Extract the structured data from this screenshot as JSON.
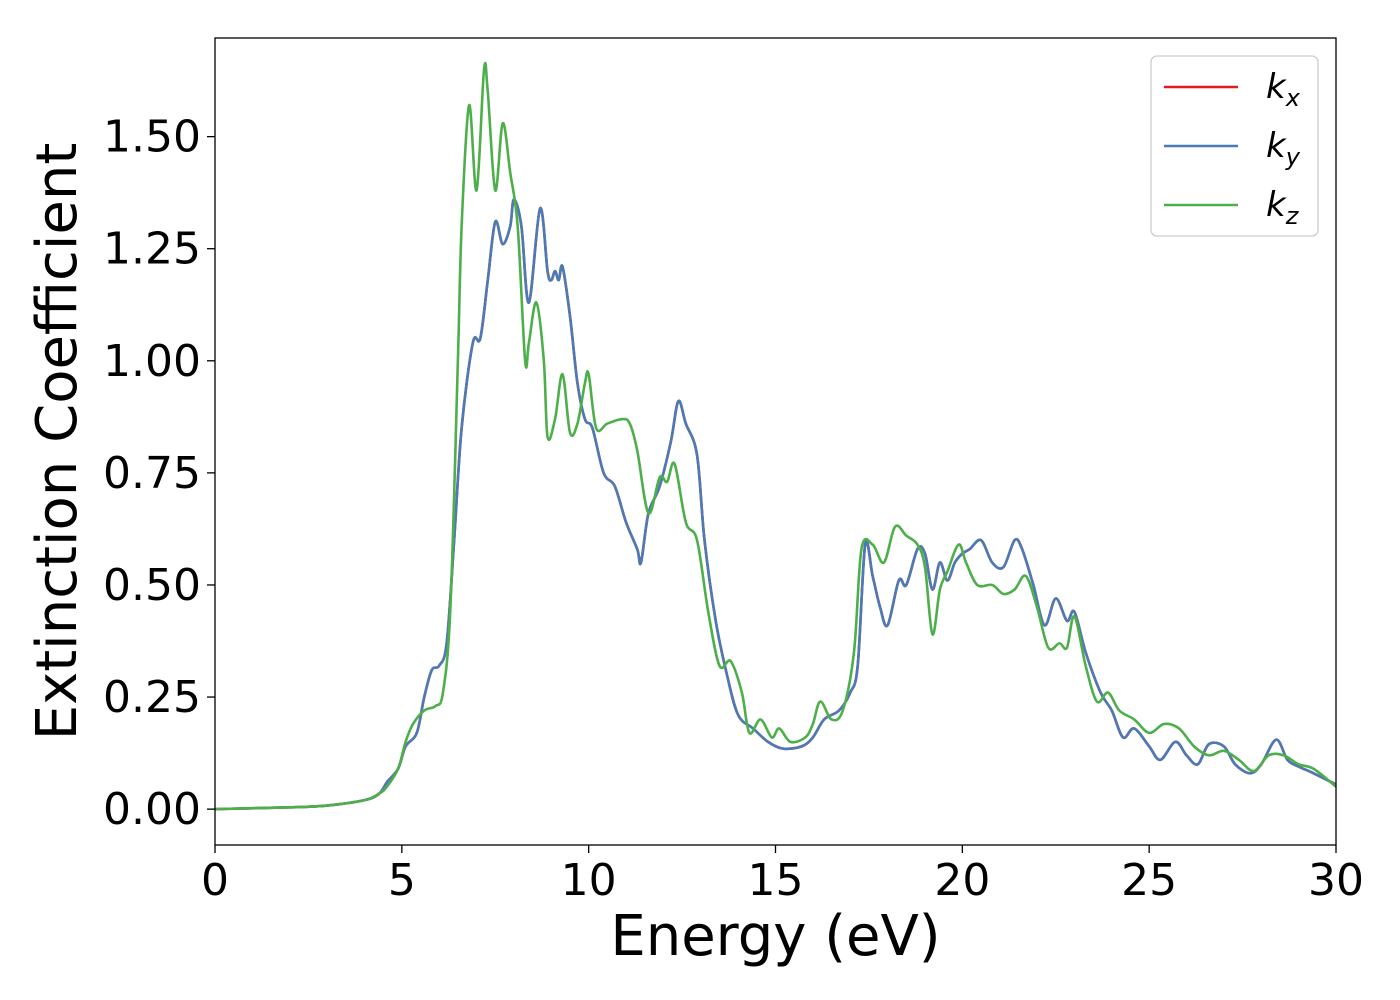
{
  "chart_data": {
    "type": "line",
    "xlabel": "Energy (eV)",
    "ylabel": "Extinction Coefficient",
    "xlim": [
      0,
      30
    ],
    "ylim": [
      -0.08,
      1.72
    ],
    "x_ticks": [
      0,
      5,
      10,
      15,
      20,
      25,
      30
    ],
    "x_tick_labels": [
      "0",
      "5",
      "10",
      "15",
      "20",
      "25",
      "30"
    ],
    "y_ticks": [
      0,
      0.25,
      0.5,
      0.75,
      1.0,
      1.25,
      1.5
    ],
    "y_tick_labels": [
      "0.00",
      "0.25",
      "0.50",
      "0.75",
      "1.00",
      "1.25",
      "1.50"
    ],
    "grid": false,
    "legend_position": "top-right",
    "series": [
      {
        "name": "k_x",
        "label_base": "k",
        "label_sub": "x",
        "color": "#e41a1c",
        "points": [
          [
            0,
            0
          ],
          [
            2,
            0.004
          ],
          [
            3,
            0.008
          ],
          [
            4,
            0.02
          ],
          [
            4.4,
            0.035
          ],
          [
            4.6,
            0.06
          ],
          [
            4.9,
            0.09
          ],
          [
            5.1,
            0.14
          ],
          [
            5.4,
            0.17
          ],
          [
            5.6,
            0.25
          ],
          [
            5.8,
            0.31
          ],
          [
            6.0,
            0.32
          ],
          [
            6.2,
            0.37
          ],
          [
            6.4,
            0.6
          ],
          [
            6.6,
            0.85
          ],
          [
            6.9,
            1.04
          ],
          [
            7.1,
            1.05
          ],
          [
            7.3,
            1.18
          ],
          [
            7.5,
            1.31
          ],
          [
            7.7,
            1.26
          ],
          [
            7.9,
            1.3
          ],
          [
            8.0,
            1.36
          ],
          [
            8.2,
            1.3
          ],
          [
            8.4,
            1.13
          ],
          [
            8.7,
            1.34
          ],
          [
            8.9,
            1.2
          ],
          [
            9.0,
            1.18
          ],
          [
            9.1,
            1.2
          ],
          [
            9.2,
            1.18
          ],
          [
            9.3,
            1.21
          ],
          [
            9.5,
            1.1
          ],
          [
            9.7,
            0.95
          ],
          [
            9.9,
            0.87
          ],
          [
            10.1,
            0.85
          ],
          [
            10.4,
            0.75
          ],
          [
            10.7,
            0.72
          ],
          [
            11.0,
            0.64
          ],
          [
            11.3,
            0.58
          ],
          [
            11.4,
            0.55
          ],
          [
            11.6,
            0.66
          ],
          [
            11.9,
            0.72
          ],
          [
            12.2,
            0.82
          ],
          [
            12.4,
            0.91
          ],
          [
            12.6,
            0.86
          ],
          [
            12.9,
            0.79
          ],
          [
            13.1,
            0.6
          ],
          [
            13.4,
            0.42
          ],
          [
            13.7,
            0.3
          ],
          [
            14.0,
            0.21
          ],
          [
            14.4,
            0.18
          ],
          [
            14.8,
            0.15
          ],
          [
            15.2,
            0.135
          ],
          [
            15.7,
            0.14
          ],
          [
            16.0,
            0.16
          ],
          [
            16.3,
            0.2
          ],
          [
            16.7,
            0.22
          ],
          [
            17.0,
            0.26
          ],
          [
            17.2,
            0.32
          ],
          [
            17.4,
            0.59
          ],
          [
            17.6,
            0.52
          ],
          [
            17.8,
            0.45
          ],
          [
            18.0,
            0.41
          ],
          [
            18.3,
            0.51
          ],
          [
            18.5,
            0.5
          ],
          [
            18.8,
            0.58
          ],
          [
            19.0,
            0.57
          ],
          [
            19.2,
            0.49
          ],
          [
            19.4,
            0.55
          ],
          [
            19.6,
            0.51
          ],
          [
            19.8,
            0.55
          ],
          [
            20.0,
            0.57
          ],
          [
            20.2,
            0.58
          ],
          [
            20.5,
            0.6
          ],
          [
            20.8,
            0.55
          ],
          [
            21.1,
            0.54
          ],
          [
            21.4,
            0.6
          ],
          [
            21.6,
            0.58
          ],
          [
            21.9,
            0.5
          ],
          [
            22.2,
            0.41
          ],
          [
            22.5,
            0.47
          ],
          [
            22.8,
            0.42
          ],
          [
            23.0,
            0.44
          ],
          [
            23.3,
            0.35
          ],
          [
            23.7,
            0.26
          ],
          [
            24.0,
            0.22
          ],
          [
            24.3,
            0.16
          ],
          [
            24.6,
            0.18
          ],
          [
            25.0,
            0.14
          ],
          [
            25.3,
            0.11
          ],
          [
            25.7,
            0.15
          ],
          [
            26.0,
            0.12
          ],
          [
            26.3,
            0.1
          ],
          [
            26.6,
            0.145
          ],
          [
            27.0,
            0.14
          ],
          [
            27.3,
            0.1
          ],
          [
            27.7,
            0.08
          ],
          [
            28.0,
            0.1
          ],
          [
            28.4,
            0.155
          ],
          [
            28.7,
            0.11
          ],
          [
            29.0,
            0.095
          ],
          [
            29.4,
            0.08
          ],
          [
            30,
            0.055
          ]
        ]
      },
      {
        "name": "k_y",
        "label_base": "k",
        "label_sub": "y",
        "color": "#4a7bb7",
        "points": [
          [
            0,
            0
          ],
          [
            2,
            0.004
          ],
          [
            3,
            0.008
          ],
          [
            4,
            0.02
          ],
          [
            4.4,
            0.035
          ],
          [
            4.6,
            0.06
          ],
          [
            4.9,
            0.09
          ],
          [
            5.1,
            0.14
          ],
          [
            5.4,
            0.17
          ],
          [
            5.6,
            0.25
          ],
          [
            5.8,
            0.31
          ],
          [
            6.0,
            0.32
          ],
          [
            6.2,
            0.37
          ],
          [
            6.4,
            0.6
          ],
          [
            6.6,
            0.85
          ],
          [
            6.9,
            1.04
          ],
          [
            7.1,
            1.05
          ],
          [
            7.3,
            1.18
          ],
          [
            7.5,
            1.31
          ],
          [
            7.7,
            1.26
          ],
          [
            7.9,
            1.3
          ],
          [
            8.0,
            1.36
          ],
          [
            8.2,
            1.3
          ],
          [
            8.4,
            1.13
          ],
          [
            8.7,
            1.34
          ],
          [
            8.9,
            1.2
          ],
          [
            9.0,
            1.18
          ],
          [
            9.1,
            1.2
          ],
          [
            9.2,
            1.18
          ],
          [
            9.3,
            1.21
          ],
          [
            9.5,
            1.1
          ],
          [
            9.7,
            0.95
          ],
          [
            9.9,
            0.87
          ],
          [
            10.1,
            0.85
          ],
          [
            10.4,
            0.75
          ],
          [
            10.7,
            0.72
          ],
          [
            11.0,
            0.64
          ],
          [
            11.3,
            0.58
          ],
          [
            11.4,
            0.55
          ],
          [
            11.6,
            0.66
          ],
          [
            11.9,
            0.72
          ],
          [
            12.2,
            0.82
          ],
          [
            12.4,
            0.91
          ],
          [
            12.6,
            0.86
          ],
          [
            12.9,
            0.79
          ],
          [
            13.1,
            0.6
          ],
          [
            13.4,
            0.42
          ],
          [
            13.7,
            0.3
          ],
          [
            14.0,
            0.21
          ],
          [
            14.4,
            0.18
          ],
          [
            14.8,
            0.15
          ],
          [
            15.2,
            0.135
          ],
          [
            15.7,
            0.14
          ],
          [
            16.0,
            0.16
          ],
          [
            16.3,
            0.2
          ],
          [
            16.7,
            0.22
          ],
          [
            17.0,
            0.26
          ],
          [
            17.2,
            0.32
          ],
          [
            17.4,
            0.59
          ],
          [
            17.6,
            0.52
          ],
          [
            17.8,
            0.45
          ],
          [
            18.0,
            0.41
          ],
          [
            18.3,
            0.51
          ],
          [
            18.5,
            0.5
          ],
          [
            18.8,
            0.58
          ],
          [
            19.0,
            0.57
          ],
          [
            19.2,
            0.49
          ],
          [
            19.4,
            0.55
          ],
          [
            19.6,
            0.51
          ],
          [
            19.8,
            0.55
          ],
          [
            20.0,
            0.57
          ],
          [
            20.2,
            0.58
          ],
          [
            20.5,
            0.6
          ],
          [
            20.8,
            0.55
          ],
          [
            21.1,
            0.54
          ],
          [
            21.4,
            0.6
          ],
          [
            21.6,
            0.58
          ],
          [
            21.9,
            0.5
          ],
          [
            22.2,
            0.41
          ],
          [
            22.5,
            0.47
          ],
          [
            22.8,
            0.42
          ],
          [
            23.0,
            0.44
          ],
          [
            23.3,
            0.35
          ],
          [
            23.7,
            0.26
          ],
          [
            24.0,
            0.22
          ],
          [
            24.3,
            0.16
          ],
          [
            24.6,
            0.18
          ],
          [
            25.0,
            0.14
          ],
          [
            25.3,
            0.11
          ],
          [
            25.7,
            0.15
          ],
          [
            26.0,
            0.12
          ],
          [
            26.3,
            0.1
          ],
          [
            26.6,
            0.145
          ],
          [
            27.0,
            0.14
          ],
          [
            27.3,
            0.1
          ],
          [
            27.7,
            0.08
          ],
          [
            28.0,
            0.1
          ],
          [
            28.4,
            0.155
          ],
          [
            28.7,
            0.11
          ],
          [
            29.0,
            0.095
          ],
          [
            29.4,
            0.08
          ],
          [
            30,
            0.055
          ]
        ]
      },
      {
        "name": "k_z",
        "label_base": "k",
        "label_sub": "z",
        "color": "#4daf4a",
        "points": [
          [
            0,
            0
          ],
          [
            2,
            0.004
          ],
          [
            3,
            0.008
          ],
          [
            4,
            0.02
          ],
          [
            4.4,
            0.035
          ],
          [
            4.6,
            0.05
          ],
          [
            4.9,
            0.09
          ],
          [
            5.1,
            0.15
          ],
          [
            5.3,
            0.19
          ],
          [
            5.6,
            0.22
          ],
          [
            5.9,
            0.23
          ],
          [
            6.1,
            0.26
          ],
          [
            6.3,
            0.45
          ],
          [
            6.5,
            1.0
          ],
          [
            6.6,
            1.3
          ],
          [
            6.8,
            1.57
          ],
          [
            7.0,
            1.38
          ],
          [
            7.2,
            1.65
          ],
          [
            7.3,
            1.6
          ],
          [
            7.5,
            1.38
          ],
          [
            7.7,
            1.53
          ],
          [
            7.9,
            1.42
          ],
          [
            8.1,
            1.3
          ],
          [
            8.3,
            1.0
          ],
          [
            8.4,
            1.04
          ],
          [
            8.6,
            1.13
          ],
          [
            8.8,
            1.0
          ],
          [
            8.9,
            0.83
          ],
          [
            9.1,
            0.87
          ],
          [
            9.3,
            0.97
          ],
          [
            9.5,
            0.84
          ],
          [
            9.7,
            0.86
          ],
          [
            9.9,
            0.95
          ],
          [
            10.0,
            0.97
          ],
          [
            10.2,
            0.85
          ],
          [
            10.5,
            0.86
          ],
          [
            10.9,
            0.87
          ],
          [
            11.1,
            0.86
          ],
          [
            11.3,
            0.8
          ],
          [
            11.6,
            0.66
          ],
          [
            11.9,
            0.74
          ],
          [
            12.1,
            0.73
          ],
          [
            12.3,
            0.77
          ],
          [
            12.6,
            0.64
          ],
          [
            12.9,
            0.6
          ],
          [
            13.2,
            0.44
          ],
          [
            13.5,
            0.32
          ],
          [
            13.8,
            0.33
          ],
          [
            14.1,
            0.26
          ],
          [
            14.3,
            0.17
          ],
          [
            14.6,
            0.2
          ],
          [
            14.9,
            0.16
          ],
          [
            15.1,
            0.18
          ],
          [
            15.4,
            0.15
          ],
          [
            15.8,
            0.16
          ],
          [
            16.0,
            0.19
          ],
          [
            16.2,
            0.24
          ],
          [
            16.5,
            0.2
          ],
          [
            16.8,
            0.22
          ],
          [
            17.1,
            0.35
          ],
          [
            17.3,
            0.58
          ],
          [
            17.6,
            0.59
          ],
          [
            17.9,
            0.55
          ],
          [
            18.2,
            0.63
          ],
          [
            18.5,
            0.61
          ],
          [
            18.8,
            0.59
          ],
          [
            19.0,
            0.54
          ],
          [
            19.2,
            0.39
          ],
          [
            19.4,
            0.49
          ],
          [
            19.6,
            0.53
          ],
          [
            19.9,
            0.59
          ],
          [
            20.1,
            0.55
          ],
          [
            20.4,
            0.5
          ],
          [
            20.8,
            0.5
          ],
          [
            21.1,
            0.48
          ],
          [
            21.4,
            0.49
          ],
          [
            21.7,
            0.52
          ],
          [
            22.0,
            0.45
          ],
          [
            22.3,
            0.36
          ],
          [
            22.6,
            0.37
          ],
          [
            22.8,
            0.36
          ],
          [
            23.0,
            0.43
          ],
          [
            23.3,
            0.32
          ],
          [
            23.6,
            0.24
          ],
          [
            23.9,
            0.26
          ],
          [
            24.2,
            0.22
          ],
          [
            24.6,
            0.2
          ],
          [
            25.0,
            0.17
          ],
          [
            25.4,
            0.19
          ],
          [
            25.8,
            0.18
          ],
          [
            26.2,
            0.14
          ],
          [
            26.6,
            0.12
          ],
          [
            27.0,
            0.13
          ],
          [
            27.4,
            0.11
          ],
          [
            27.8,
            0.085
          ],
          [
            28.2,
            0.12
          ],
          [
            28.6,
            0.12
          ],
          [
            29.0,
            0.1
          ],
          [
            29.4,
            0.09
          ],
          [
            30,
            0.05
          ]
        ]
      }
    ]
  }
}
